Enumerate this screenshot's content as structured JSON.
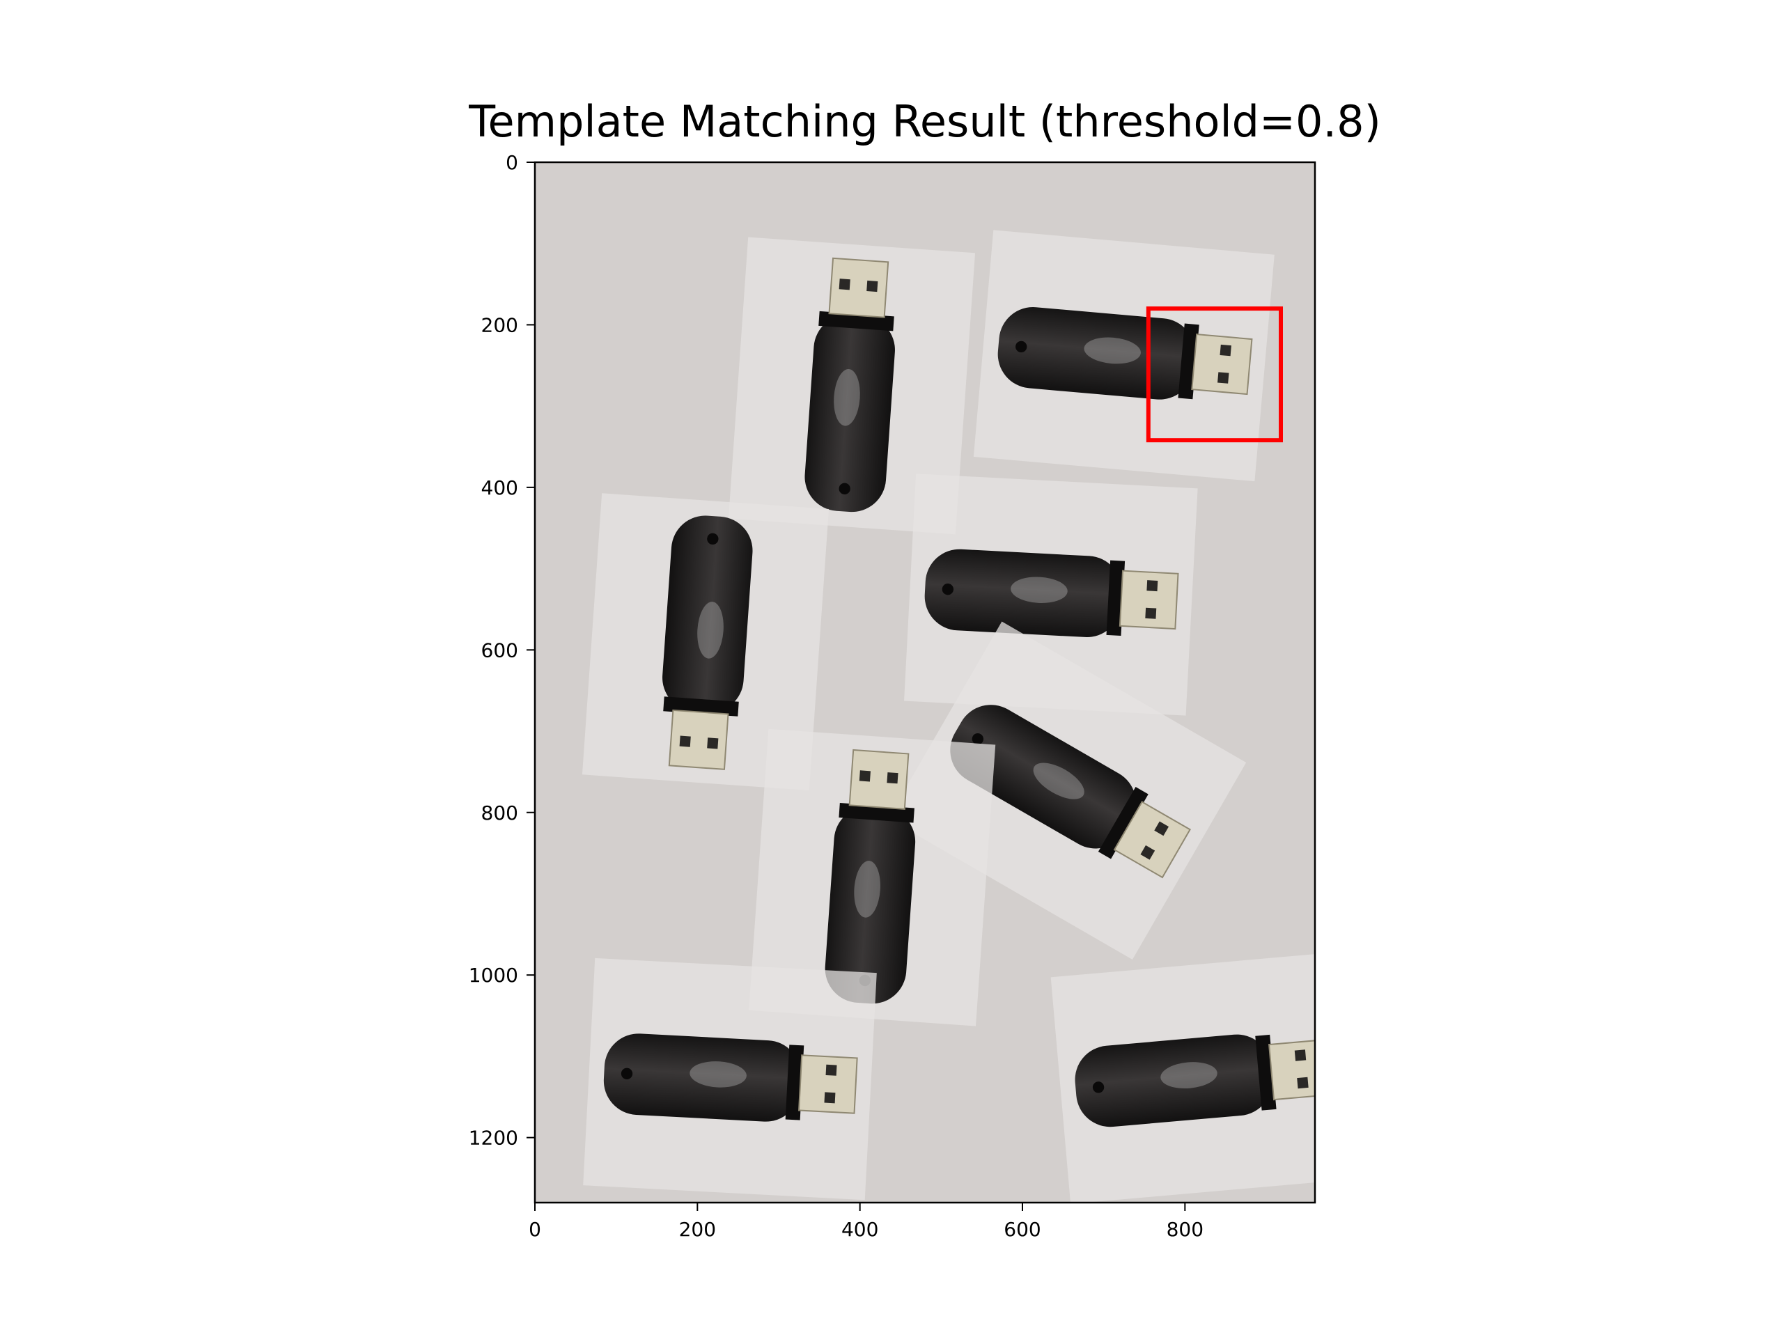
{
  "chart_data": {
    "type": "image",
    "title": "Template Matching Result (threshold=0.8)",
    "xlabel": "",
    "ylabel": "",
    "xlim": [
      0,
      960
    ],
    "ylim": [
      1280,
      0
    ],
    "xticks": [
      0,
      200,
      400,
      600,
      800
    ],
    "yticks": [
      0,
      200,
      400,
      600,
      800,
      1000,
      1200
    ],
    "grid": false,
    "legend": "none",
    "colors": {
      "match_box": "#ff0000",
      "background": "#d3cfcd",
      "paper_patch": "#e6e3e1",
      "drive_body": "#2b2929",
      "connector": "#d8d2bd"
    },
    "detections": [
      {
        "label": "match",
        "x0": 755,
        "y0": 180,
        "x1": 918,
        "y1": 342
      }
    ],
    "objects": [
      {
        "kind": "usb-drive",
        "cx": 390,
        "cy": 275,
        "angle": -86
      },
      {
        "kind": "usb-drive",
        "cx": 725,
        "cy": 238,
        "angle": 5
      },
      {
        "kind": "usb-drive",
        "cx": 635,
        "cy": 532,
        "angle": 3
      },
      {
        "kind": "usb-drive",
        "cx": 210,
        "cy": 590,
        "angle": 94
      },
      {
        "kind": "usb-drive",
        "cx": 655,
        "cy": 773,
        "angle": 30
      },
      {
        "kind": "usb-drive",
        "cx": 415,
        "cy": 880,
        "angle": -86
      },
      {
        "kind": "usb-drive",
        "cx": 240,
        "cy": 1128,
        "angle": 3
      },
      {
        "kind": "usb-drive",
        "cx": 820,
        "cy": 1127,
        "angle": -5
      }
    ]
  }
}
